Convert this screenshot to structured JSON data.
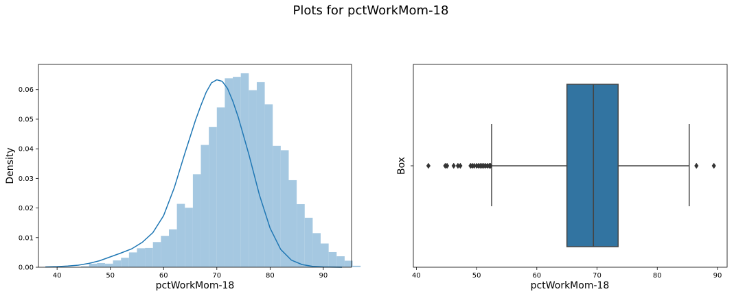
{
  "figure": {
    "title": "Plots for pctWorkMom-18"
  },
  "chart_data": [
    {
      "type": "histogram",
      "xlabel": "pctWorkMom-18",
      "ylabel": "Density",
      "xlim": [
        36.5,
        95.3
      ],
      "ylim": [
        0,
        0.0685
      ],
      "x_ticks": [
        40,
        50,
        60,
        70,
        80,
        90
      ],
      "y_ticks": [
        0.0,
        0.01,
        0.02,
        0.03,
        0.04,
        0.05,
        0.06
      ],
      "y_tick_labels": [
        "0.00",
        "0.01",
        "0.02",
        "0.03",
        "0.04",
        "0.05",
        "0.06"
      ],
      "bar_color": "#a5c8e1",
      "kde_color": "#1f77b4",
      "bin_width": 1.5,
      "bin_edges_start": 44.5,
      "values": [
        0.0003,
        0.0012,
        0.0014,
        0.0012,
        0.0023,
        0.0032,
        0.005,
        0.0064,
        0.0065,
        0.0085,
        0.0106,
        0.0128,
        0.0214,
        0.0201,
        0.0314,
        0.0413,
        0.0474,
        0.054,
        0.0638,
        0.0643,
        0.0655,
        0.0598,
        0.0625,
        0.055,
        0.041,
        0.0395,
        0.0294,
        0.0213,
        0.0167,
        0.0115,
        0.008,
        0.0051,
        0.0037,
        0.0022,
        0.0005
      ],
      "kde": {
        "x": [
          37.8,
          40,
          42,
          44,
          46,
          48,
          50,
          52,
          54,
          56,
          58,
          60,
          62,
          64,
          66,
          67,
          68,
          69,
          70,
          71,
          72,
          73,
          74,
          76,
          78,
          80,
          82,
          84,
          86,
          88,
          90,
          93.5
        ],
        "y": [
          0.0001,
          0.0002,
          0.0004,
          0.0007,
          0.0013,
          0.0022,
          0.0035,
          0.0048,
          0.0062,
          0.0084,
          0.0117,
          0.0174,
          0.0268,
          0.0385,
          0.0497,
          0.0546,
          0.0591,
          0.0623,
          0.0633,
          0.0628,
          0.0604,
          0.0561,
          0.0508,
          0.0382,
          0.0244,
          0.0132,
          0.006,
          0.0024,
          0.0009,
          0.0003,
          0.0001,
          0.0
        ]
      }
    },
    {
      "type": "box",
      "xlabel": "pctWorkMom-18",
      "ylabel": "Box",
      "xlim": [
        39.5,
        91.6
      ],
      "x_ticks": [
        40,
        50,
        60,
        70,
        80,
        90
      ],
      "box_color": "#3274a1",
      "line_color": "#444444",
      "q1": 65.0,
      "median": 69.4,
      "q3": 73.5,
      "whisker_low": 52.5,
      "whisker_high": 85.3,
      "outliers": [
        42.0,
        44.8,
        45.1,
        46.2,
        46.9,
        47.3,
        49.0,
        49.3,
        49.6,
        50.0,
        50.3,
        50.6,
        50.9,
        51.2,
        51.5,
        51.8,
        52.1,
        52.3,
        86.5,
        89.4
      ]
    }
  ]
}
